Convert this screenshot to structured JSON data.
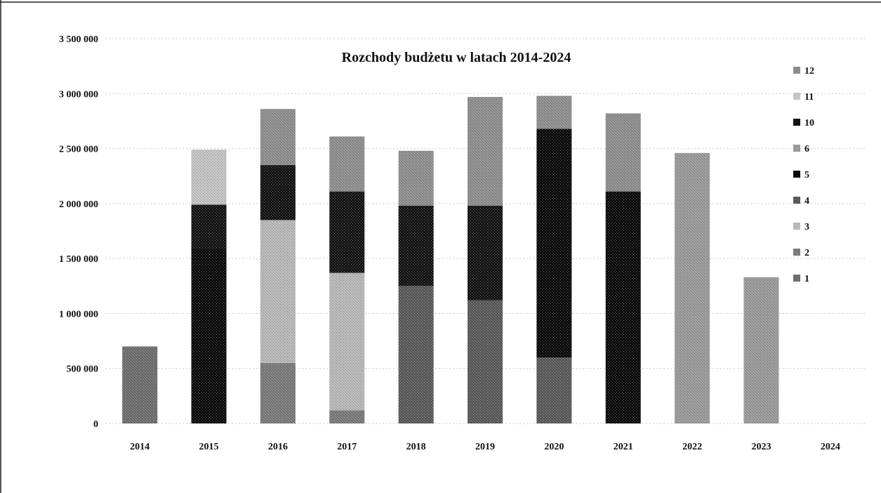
{
  "chart_data": {
    "type": "bar",
    "stacked": true,
    "title": "Rozchody budżetu w latach 2014-2024",
    "xlabel": "",
    "ylabel": "",
    "ylim": [
      0,
      3500000
    ],
    "yticks": [
      "0",
      "500 000",
      "1 000 000",
      "1 500 000",
      "2 000 000",
      "2 500 000",
      "3 000 000",
      "3 500 000"
    ],
    "ytick_values": [
      0,
      500000,
      1000000,
      1500000,
      2000000,
      2500000,
      3000000,
      3500000
    ],
    "grid": true,
    "legend_position": "right",
    "categories": [
      "2014",
      "2015",
      "2016",
      "2017",
      "2018",
      "2019",
      "2020",
      "2021",
      "2022",
      "2023",
      "2024"
    ],
    "series": [
      {
        "name": "1",
        "color": "#6e6e6e",
        "values": [
          700000,
          0,
          0,
          0,
          0,
          0,
          0,
          0,
          0,
          0,
          0
        ]
      },
      {
        "name": "2",
        "color": "#7a7a7a",
        "values": [
          0,
          0,
          550000,
          120000,
          0,
          0,
          0,
          0,
          0,
          0,
          0
        ]
      },
      {
        "name": "3",
        "color": "#b8b8b8",
        "values": [
          0,
          0,
          1300000,
          1250000,
          0,
          0,
          0,
          0,
          0,
          0,
          0
        ]
      },
      {
        "name": "4",
        "color": "#5a5a5a",
        "values": [
          0,
          0,
          0,
          0,
          1250000,
          1120000,
          600000,
          0,
          0,
          0,
          0
        ]
      },
      {
        "name": "5",
        "color": "#0a0a0a",
        "values": [
          0,
          1590000,
          0,
          0,
          0,
          0,
          2080000,
          2110000,
          0,
          0,
          0
        ]
      },
      {
        "name": "6",
        "color": "#9a9a9a",
        "values": [
          0,
          0,
          0,
          0,
          0,
          0,
          0,
          0,
          2460000,
          1330000,
          0
        ]
      },
      {
        "name": "10",
        "color": "#141414",
        "values": [
          0,
          400000,
          500000,
          740000,
          730000,
          860000,
          0,
          0,
          0,
          0,
          0
        ]
      },
      {
        "name": "11",
        "color": "#c4c4c4",
        "values": [
          0,
          500000,
          0,
          0,
          0,
          0,
          0,
          0,
          0,
          0,
          0
        ]
      },
      {
        "name": "12",
        "color": "#8e8e8e",
        "values": [
          0,
          0,
          510000,
          500000,
          500000,
          990000,
          300000,
          710000,
          0,
          0,
          0
        ]
      }
    ]
  }
}
